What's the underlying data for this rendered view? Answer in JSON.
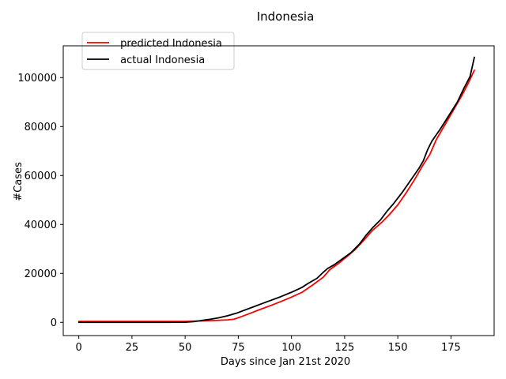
{
  "chart_data": {
    "type": "line",
    "title": "Indonesia",
    "xlabel": "Days since Jan 21st 2020",
    "ylabel": "#Cases",
    "xlim": [
      -7.3,
      195.3
    ],
    "ylim": [
      -5400,
      113000
    ],
    "xticks": [
      0,
      25,
      50,
      75,
      100,
      125,
      150,
      175
    ],
    "yticks": [
      0,
      20000,
      40000,
      60000,
      80000,
      100000
    ],
    "grid": false,
    "legend_position": "top-left",
    "series": [
      {
        "name": " predicted Indonesia",
        "color": "#ff0000",
        "points": [
          [
            0,
            400
          ],
          [
            20,
            400
          ],
          [
            40,
            400
          ],
          [
            50,
            400
          ],
          [
            55,
            500
          ],
          [
            60,
            650
          ],
          [
            65,
            800
          ],
          [
            70,
            1000
          ],
          [
            73,
            1300
          ],
          [
            76,
            2200
          ],
          [
            80,
            3500
          ],
          [
            85,
            5200
          ],
          [
            90,
            6800
          ],
          [
            95,
            8500
          ],
          [
            100,
            10300
          ],
          [
            105,
            12300
          ],
          [
            110,
            15300
          ],
          [
            115,
            18500
          ],
          [
            118,
            21500
          ],
          [
            122,
            24000
          ],
          [
            126,
            26800
          ],
          [
            130,
            29800
          ],
          [
            134,
            33500
          ],
          [
            138,
            37500
          ],
          [
            142,
            40500
          ],
          [
            146,
            44000
          ],
          [
            150,
            48000
          ],
          [
            154,
            53000
          ],
          [
            158,
            58500
          ],
          [
            162,
            64500
          ],
          [
            165,
            68500
          ],
          [
            168,
            74500
          ],
          [
            172,
            80500
          ],
          [
            176,
            86500
          ],
          [
            180,
            92500
          ],
          [
            183,
            97500
          ],
          [
            186,
            103000
          ]
        ]
      },
      {
        "name": " actual Indonesia",
        "color": "#000000",
        "points": [
          [
            0,
            0
          ],
          [
            20,
            0
          ],
          [
            40,
            0
          ],
          [
            50,
            50
          ],
          [
            54,
            300
          ],
          [
            58,
            800
          ],
          [
            62,
            1300
          ],
          [
            66,
            1900
          ],
          [
            70,
            2700
          ],
          [
            74,
            3700
          ],
          [
            78,
            5000
          ],
          [
            82,
            6300
          ],
          [
            86,
            7600
          ],
          [
            90,
            8900
          ],
          [
            95,
            10500
          ],
          [
            100,
            12300
          ],
          [
            105,
            14300
          ],
          [
            108,
            16000
          ],
          [
            112,
            18000
          ],
          [
            115,
            20500
          ],
          [
            117,
            22000
          ],
          [
            120,
            23500
          ],
          [
            124,
            26000
          ],
          [
            128,
            28500
          ],
          [
            132,
            32000
          ],
          [
            135,
            35500
          ],
          [
            138,
            38500
          ],
          [
            142,
            42000
          ],
          [
            145,
            45500
          ],
          [
            148,
            48500
          ],
          [
            152,
            53000
          ],
          [
            156,
            58000
          ],
          [
            160,
            63000
          ],
          [
            162,
            66000
          ],
          [
            164,
            70500
          ],
          [
            166,
            74000
          ],
          [
            170,
            79000
          ],
          [
            174,
            84500
          ],
          [
            178,
            90000
          ],
          [
            181,
            95500
          ],
          [
            184,
            100500
          ],
          [
            186,
            108300
          ]
        ]
      }
    ]
  }
}
